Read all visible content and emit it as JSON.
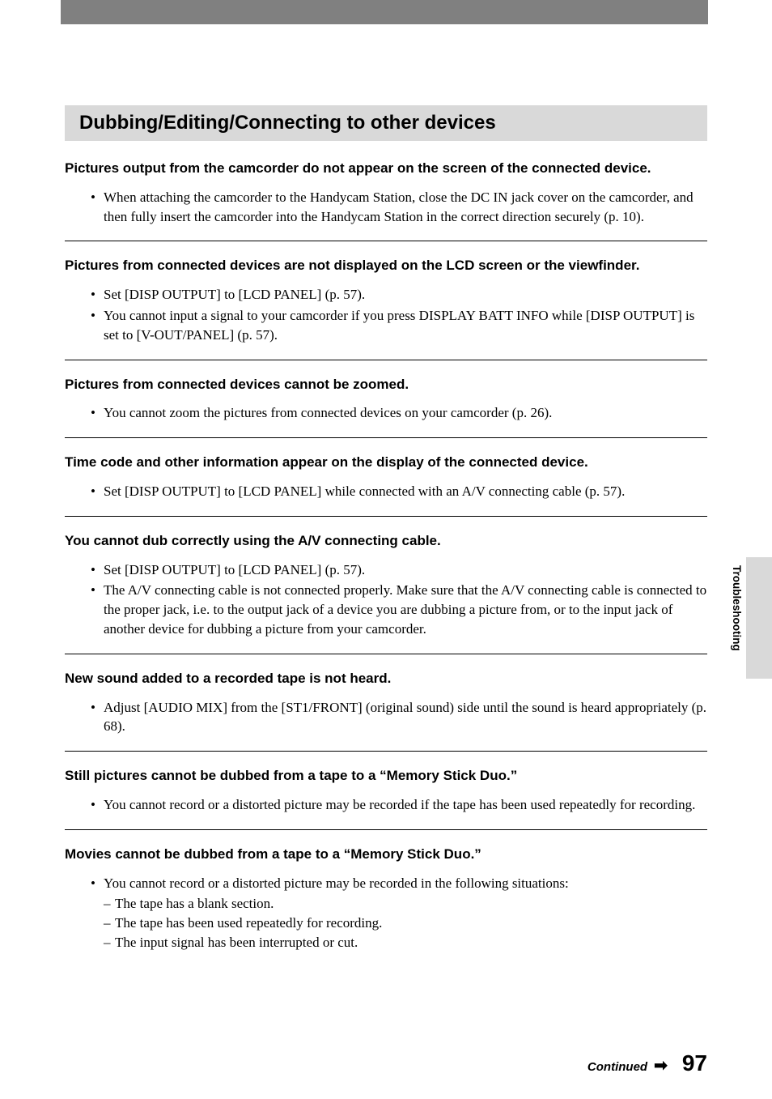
{
  "colors": {
    "top_bar_bg": "#808080",
    "heading_bg": "#d9d9d9",
    "side_tab_bg": "#d9d9d9",
    "page_bg": "#ffffff",
    "divider": "#000000",
    "text": "#000000"
  },
  "typography": {
    "heading_family": "Arial",
    "body_family": "Times New Roman",
    "heading_size": 24,
    "section_title_size": 17,
    "body_size": 17,
    "side_text_size": 13.5,
    "continued_size": 15,
    "page_num_size": 28
  },
  "main_heading": "Dubbing/Editing/Connecting to other devices",
  "side_text": "Troubleshooting",
  "footer": {
    "continued": "Continued",
    "arrow": "➡",
    "pageNum": "97"
  },
  "sections": [
    {
      "title": "Pictures output from the camcorder do not appear on the screen of the connected device.",
      "bullets": [
        "When attaching the camcorder to the Handycam Station, close the DC IN jack cover on the camcorder, and then fully insert the camcorder into the Handycam Station in the correct direction securely (p. 10)."
      ]
    },
    {
      "title": "Pictures from connected devices are not displayed on the LCD screen or the viewfinder.",
      "bullets": [
        "Set [DISP OUTPUT] to [LCD PANEL] (p. 57).",
        "You cannot input a signal to your camcorder if you press DISPLAY BATT INFO while [DISP OUTPUT] is set to [V-OUT/PANEL] (p. 57)."
      ]
    },
    {
      "title": "Pictures from connected devices cannot be zoomed.",
      "bullets": [
        "You cannot zoom the pictures from connected devices on your camcorder (p. 26)."
      ]
    },
    {
      "title": "Time code and other information appear on the display of the connected device.",
      "bullets": [
        "Set [DISP OUTPUT] to [LCD PANEL] while connected with an A/V connecting cable (p. 57)."
      ]
    },
    {
      "title": "You cannot dub correctly using the A/V connecting cable.",
      "bullets": [
        "Set [DISP OUTPUT] to [LCD PANEL] (p. 57).",
        "The A/V connecting cable is not connected properly. Make sure that the A/V connecting cable is connected to the proper jack, i.e. to the output jack of a device you are dubbing a picture from, or to the input jack of another device for dubbing a picture from your camcorder."
      ]
    },
    {
      "title": "New sound added to a recorded tape is not heard.",
      "bullets": [
        "Adjust [AUDIO MIX] from the [ST1/FRONT] (original sound) side until the sound is heard appropriately (p. 68)."
      ]
    },
    {
      "title": "Still pictures cannot be dubbed from a tape to a “Memory Stick Duo.”",
      "bullets": [
        "You cannot record or a distorted picture may be recorded if the tape has been used repeatedly for recording."
      ]
    },
    {
      "title": "Movies cannot be dubbed from a tape to a “Memory Stick Duo.”",
      "bullets": [
        "You cannot record or a distorted picture may be recorded in the following situations:"
      ],
      "subItems": [
        "The tape has a blank section.",
        "The tape has been used repeatedly for recording.",
        "The input signal has been interrupted or cut."
      ],
      "noDivider": true
    }
  ]
}
